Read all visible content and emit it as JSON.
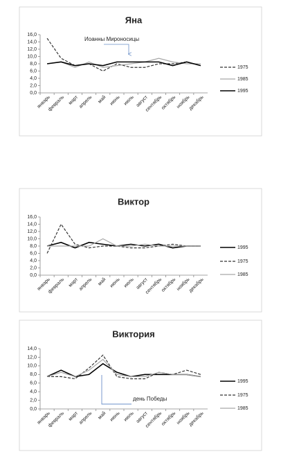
{
  "chart_data": [
    {
      "type": "line",
      "title": "Яна",
      "categories": [
        "январь",
        "февраль",
        "март",
        "апрель",
        "май",
        "июнь",
        "июль",
        "август",
        "сентябрь",
        "октябрь",
        "ноябрь",
        "декабрь"
      ],
      "series": [
        {
          "name": "1975",
          "color": "#333333",
          "dash": "dashed",
          "values": [
            15,
            9.5,
            7.5,
            8,
            6,
            8,
            7,
            7,
            8,
            8,
            8.5,
            7.5
          ]
        },
        {
          "name": "1985",
          "color": "#a6a6a6",
          "dash": "solid",
          "values": [
            8,
            8.5,
            7,
            8.5,
            7,
            7.5,
            8,
            8.5,
            9.5,
            8.5,
            8,
            8
          ]
        },
        {
          "name": "1995",
          "color": "#000000",
          "dash": "solid",
          "values": [
            8,
            8.5,
            7.5,
            8,
            7.5,
            8.5,
            8.5,
            8.5,
            8.5,
            7.5,
            8.5,
            7.5
          ]
        }
      ],
      "ylim": [
        0,
        16
      ],
      "yticks": [
        {
          "value": 0,
          "label": "0,0"
        },
        {
          "value": 2,
          "label": "2,0"
        },
        {
          "value": 4,
          "label": "4,0"
        },
        {
          "value": 6,
          "label": "6,0"
        },
        {
          "value": 8,
          "label": "8,0"
        },
        {
          "value": 10,
          "label": "10,0"
        },
        {
          "value": 12,
          "label": "12,0"
        },
        {
          "value": 14,
          "label": "14,0"
        },
        {
          "value": 16,
          "label": "16,0"
        }
      ],
      "annotation": "Иоанны Мироносицы",
      "legend": "right"
    },
    {
      "type": "line",
      "title": "Виктор",
      "categories": [
        "январь",
        "февраль",
        "март",
        "апрель",
        "май",
        "июнь",
        "июль",
        "август",
        "сентябрь",
        "октябрь",
        "ноябрь",
        "декабрь"
      ],
      "series": [
        {
          "name": "1995",
          "color": "#000000",
          "dash": "solid",
          "values": [
            8,
            9,
            7.5,
            9,
            8.5,
            8,
            8.5,
            8,
            8.5,
            7.5,
            8,
            8
          ]
        },
        {
          "name": "1975",
          "color": "#333333",
          "dash": "dashed",
          "values": [
            6,
            14,
            8.5,
            7.5,
            8,
            8,
            7.5,
            7.5,
            8,
            8.5,
            8,
            8
          ]
        },
        {
          "name": "1985",
          "color": "#a6a6a6",
          "dash": "solid",
          "values": [
            8,
            8,
            8,
            8,
            10,
            8,
            8,
            8.5,
            8,
            8,
            8,
            8
          ]
        }
      ],
      "ylim": [
        0,
        16
      ],
      "yticks": [
        {
          "value": 0,
          "label": "0,0"
        },
        {
          "value": 2,
          "label": "2,0"
        },
        {
          "value": 4,
          "label": "4,0"
        },
        {
          "value": 6,
          "label": "6,0"
        },
        {
          "value": 8,
          "label": "8,0"
        },
        {
          "value": 10,
          "label": "10,0"
        },
        {
          "value": 12,
          "label": "12,0"
        },
        {
          "value": 14,
          "label": "14,0"
        },
        {
          "value": 16,
          "label": "16,0"
        }
      ],
      "legend": "right"
    },
    {
      "type": "line",
      "title": "Виктория",
      "categories": [
        "январь",
        "февраль",
        "март",
        "апрель",
        "май",
        "июнь",
        "июль",
        "август",
        "сентябрь",
        "октябрь",
        "ноябрь",
        "декабрь"
      ],
      "series": [
        {
          "name": "1995",
          "color": "#000000",
          "dash": "solid",
          "values": [
            7.5,
            9,
            7.5,
            8,
            10.5,
            8.5,
            7.5,
            8,
            8,
            8,
            8,
            7.5
          ]
        },
        {
          "name": "1975",
          "color": "#333333",
          "dash": "dashed",
          "values": [
            7.5,
            7.5,
            7,
            9.5,
            12.5,
            7.5,
            7,
            7,
            8.5,
            8,
            9,
            8
          ]
        },
        {
          "name": "1985",
          "color": "#a6a6a6",
          "dash": "solid",
          "values": [
            7.5,
            8.5,
            7.5,
            9,
            11.5,
            8,
            7.5,
            7.5,
            8.5,
            8,
            8,
            7.5
          ]
        }
      ],
      "ylim": [
        0,
        14
      ],
      "yticks": [
        {
          "value": 0,
          "label": "0,0"
        },
        {
          "value": 2,
          "label": "2,0"
        },
        {
          "value": 4,
          "label": "4,0"
        },
        {
          "value": 6,
          "label": "6,0"
        },
        {
          "value": 8,
          "label": "8,0"
        },
        {
          "value": 10,
          "label": "10,0"
        },
        {
          "value": 12,
          "label": "12,0"
        },
        {
          "value": 14,
          "label": "14,0"
        }
      ],
      "annotation": "день Победы",
      "legend": "right"
    }
  ]
}
